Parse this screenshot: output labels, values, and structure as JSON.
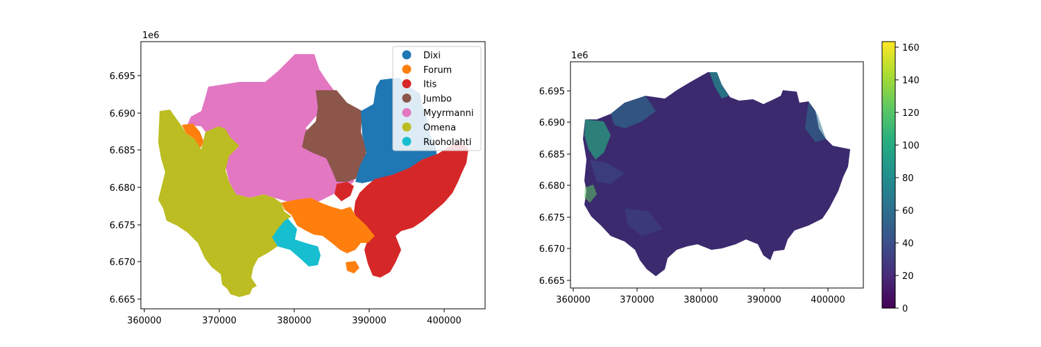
{
  "chart_data": [
    {
      "type": "map",
      "subtype": "categorical-choropleth",
      "x_ticks": [
        "360000",
        "370000",
        "380000",
        "390000",
        "400000"
      ],
      "y_ticks": [
        "6.665",
        "6.670",
        "6.675",
        "6.680",
        "6.685",
        "6.690",
        "6.695"
      ],
      "y_offset_label": "1e6",
      "xlim": [
        359500,
        405800
      ],
      "ylim": [
        6663800,
        6699700
      ],
      "legend_position": "upper right",
      "legend": [
        {
          "label": "Dixi",
          "color": "#1f77b4"
        },
        {
          "label": "Forum",
          "color": "#ff7f0e"
        },
        {
          "label": "Itis",
          "color": "#d62728"
        },
        {
          "label": "Jumbo",
          "color": "#8c564b"
        },
        {
          "label": "Myyrmanni",
          "color": "#e377c2"
        },
        {
          "label": "Omena",
          "color": "#bcbd22"
        },
        {
          "label": "Ruoholahti",
          "color": "#17becf"
        }
      ]
    },
    {
      "type": "map",
      "subtype": "continuous-choropleth",
      "x_ticks": [
        "360000",
        "370000",
        "380000",
        "390000",
        "400000"
      ],
      "y_ticks": [
        "6.665",
        "6.670",
        "6.675",
        "6.680",
        "6.685",
        "6.690",
        "6.695"
      ],
      "y_offset_label": "1e6",
      "xlim": [
        359500,
        405800
      ],
      "ylim": [
        6663800,
        6699700
      ],
      "colormap": "viridis",
      "colorbar": {
        "min": 0,
        "max": 163,
        "ticks": [
          "0",
          "20",
          "40",
          "60",
          "80",
          "100",
          "120",
          "140",
          "160"
        ]
      },
      "fill_color": "#3b2a6e"
    }
  ]
}
